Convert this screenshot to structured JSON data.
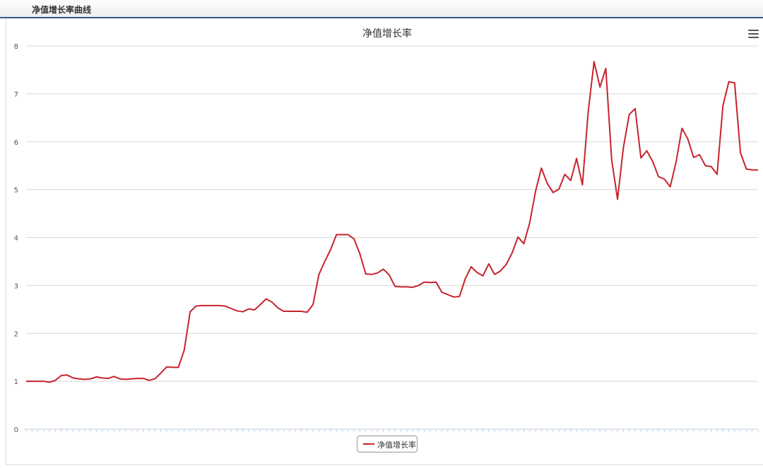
{
  "panel": {
    "title": "净值增长率曲线"
  },
  "chart_data": {
    "type": "line",
    "title": "净值增长率",
    "xlabel": "",
    "ylabel": "",
    "ylim": [
      0,
      8
    ],
    "yticks": [
      0,
      1,
      2,
      3,
      4,
      5,
      6,
      7,
      8
    ],
    "grid": true,
    "legend": "bottom-center",
    "line_color": "#c8232c",
    "series": [
      {
        "name": "净值增长率",
        "values": [
          1.0,
          1.0,
          1.0,
          1.0,
          0.98,
          1.02,
          1.12,
          1.13,
          1.07,
          1.05,
          1.04,
          1.05,
          1.09,
          1.07,
          1.06,
          1.1,
          1.05,
          1.04,
          1.05,
          1.06,
          1.06,
          1.02,
          1.05,
          1.17,
          1.3,
          1.29,
          1.29,
          1.65,
          2.45,
          2.57,
          2.58,
          2.58,
          2.58,
          2.58,
          2.57,
          2.52,
          2.47,
          2.45,
          2.51,
          2.49,
          2.6,
          2.72,
          2.65,
          2.53,
          2.46,
          2.46,
          2.46,
          2.46,
          2.44,
          2.6,
          3.23,
          3.5,
          3.75,
          4.06,
          4.06,
          4.06,
          3.97,
          3.66,
          3.24,
          3.23,
          3.26,
          3.34,
          3.22,
          2.98,
          2.97,
          2.97,
          2.96,
          3.0,
          3.07,
          3.06,
          3.07,
          2.86,
          2.81,
          2.76,
          2.77,
          3.14,
          3.39,
          3.27,
          3.2,
          3.45,
          3.23,
          3.3,
          3.44,
          3.68,
          4.01,
          3.87,
          4.31,
          4.97,
          5.45,
          5.13,
          4.94,
          5.01,
          5.32,
          5.19,
          5.65,
          5.1,
          6.63,
          7.67,
          7.14,
          7.53,
          5.62,
          4.8,
          5.88,
          6.57,
          6.69,
          5.66,
          5.81,
          5.59,
          5.27,
          5.22,
          5.06,
          5.58,
          6.28,
          6.06,
          5.67,
          5.73,
          5.5,
          5.48,
          5.32,
          6.75,
          7.25,
          7.23,
          5.77,
          5.43,
          5.41,
          5.41
        ]
      }
    ]
  }
}
